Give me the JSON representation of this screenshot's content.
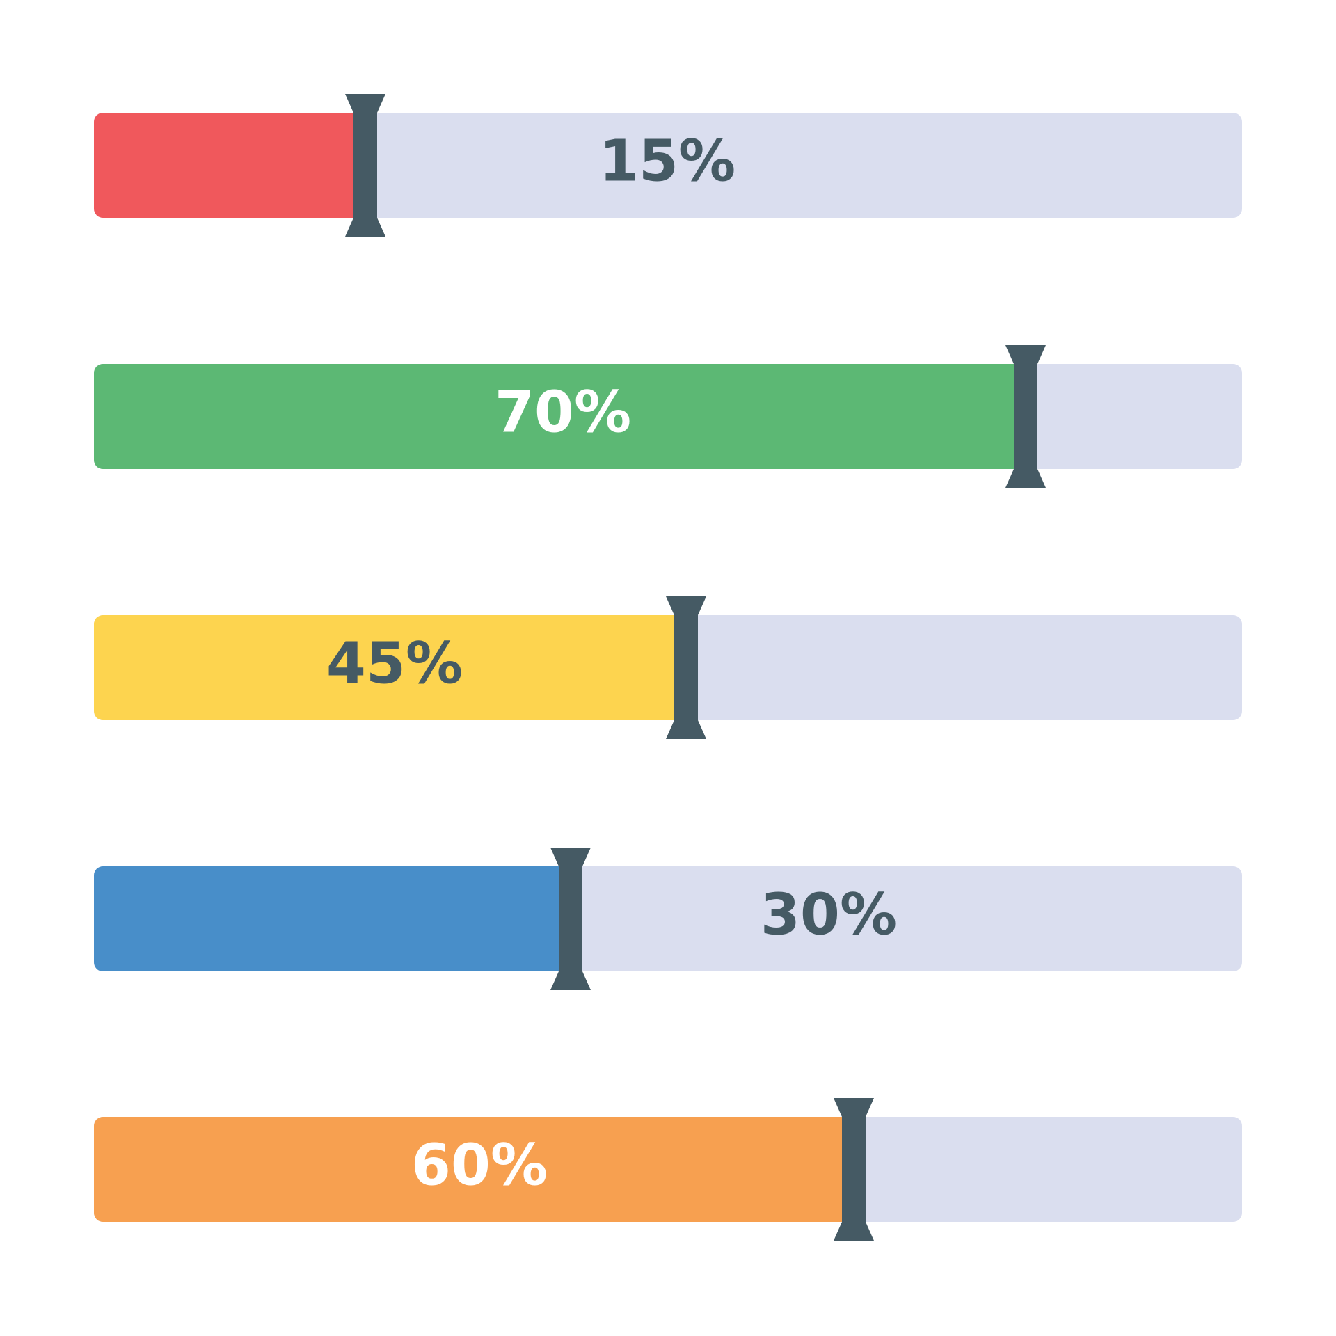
{
  "bars": [
    {
      "label": "15%"
    },
    {
      "label": "70%"
    },
    {
      "label": "45%"
    },
    {
      "label": "30%"
    },
    {
      "label": "60%"
    }
  ]
}
